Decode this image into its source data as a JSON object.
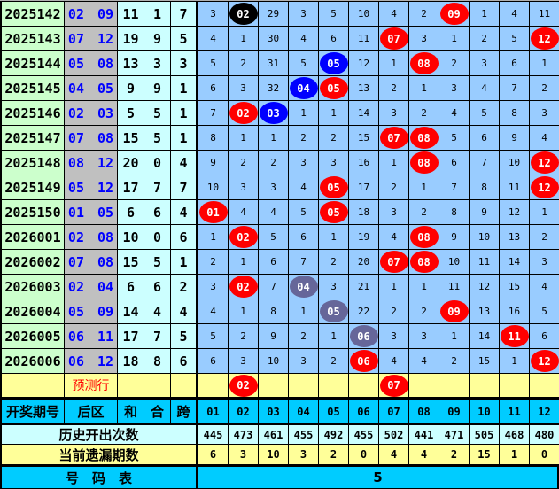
{
  "ball_colors": {
    "red": "#ff0000",
    "blue": "#0000ff",
    "black": "#000000",
    "gray": "#666699"
  },
  "rows": [
    {
      "period": "2025142",
      "back": "02 09",
      "he": "11",
      "hezhi": "1",
      "kua": "7",
      "cells": [
        "3",
        {
          "n": "02",
          "c": "black"
        },
        "29",
        "3",
        "5",
        "10",
        "4",
        "2",
        {
          "n": "09",
          "c": "red"
        },
        "1",
        "4",
        "11"
      ]
    },
    {
      "period": "2025143",
      "back": "07 12",
      "he": "19",
      "hezhi": "9",
      "kua": "5",
      "cells": [
        "4",
        "1",
        "30",
        "4",
        "6",
        "11",
        {
          "n": "07",
          "c": "red"
        },
        "3",
        "1",
        "2",
        "5",
        {
          "n": "12",
          "c": "red"
        }
      ]
    },
    {
      "period": "2025144",
      "back": "05 08",
      "he": "13",
      "hezhi": "3",
      "kua": "3",
      "cells": [
        "5",
        "2",
        "31",
        "5",
        {
          "n": "05",
          "c": "blue"
        },
        "12",
        "1",
        {
          "n": "08",
          "c": "red"
        },
        "2",
        "3",
        "6",
        "1"
      ]
    },
    {
      "period": "2025145",
      "back": "04 05",
      "he": "9",
      "hezhi": "9",
      "kua": "1",
      "cells": [
        "6",
        "3",
        "32",
        {
          "n": "04",
          "c": "blue"
        },
        {
          "n": "05",
          "c": "red"
        },
        "13",
        "2",
        "1",
        "3",
        "4",
        "7",
        "2"
      ]
    },
    {
      "period": "2025146",
      "back": "02 03",
      "he": "5",
      "hezhi": "5",
      "kua": "1",
      "cells": [
        "7",
        {
          "n": "02",
          "c": "red"
        },
        {
          "n": "03",
          "c": "blue"
        },
        "1",
        "1",
        "14",
        "3",
        "2",
        "4",
        "5",
        "8",
        "3"
      ]
    },
    {
      "period": "2025147",
      "back": "07 08",
      "he": "15",
      "hezhi": "5",
      "kua": "1",
      "cells": [
        "8",
        "1",
        "1",
        "2",
        "2",
        "15",
        {
          "n": "07",
          "c": "red"
        },
        {
          "n": "08",
          "c": "red"
        },
        "5",
        "6",
        "9",
        "4"
      ]
    },
    {
      "period": "2025148",
      "back": "08 12",
      "he": "20",
      "hezhi": "0",
      "kua": "4",
      "cells": [
        "9",
        "2",
        "2",
        "3",
        "3",
        "16",
        "1",
        {
          "n": "08",
          "c": "red"
        },
        "6",
        "7",
        "10",
        {
          "n": "12",
          "c": "red"
        }
      ]
    },
    {
      "period": "2025149",
      "back": "05 12",
      "he": "17",
      "hezhi": "7",
      "kua": "7",
      "cells": [
        "10",
        "3",
        "3",
        "4",
        {
          "n": "05",
          "c": "red"
        },
        "17",
        "2",
        "1",
        "7",
        "8",
        "11",
        {
          "n": "12",
          "c": "red"
        }
      ]
    },
    {
      "period": "2025150",
      "back": "01 05",
      "he": "6",
      "hezhi": "6",
      "kua": "4",
      "cells": [
        {
          "n": "01",
          "c": "red"
        },
        "4",
        "4",
        "5",
        {
          "n": "05",
          "c": "red"
        },
        "18",
        "3",
        "2",
        "8",
        "9",
        "12",
        "1"
      ]
    },
    {
      "period": "2026001",
      "back": "02 08",
      "he": "10",
      "hezhi": "0",
      "kua": "6",
      "cells": [
        "1",
        {
          "n": "02",
          "c": "red"
        },
        "5",
        "6",
        "1",
        "19",
        "4",
        {
          "n": "08",
          "c": "red"
        },
        "9",
        "10",
        "13",
        "2"
      ]
    },
    {
      "period": "2026002",
      "back": "07 08",
      "he": "15",
      "hezhi": "5",
      "kua": "1",
      "cells": [
        "2",
        "1",
        "6",
        "7",
        "2",
        "20",
        {
          "n": "07",
          "c": "red"
        },
        {
          "n": "08",
          "c": "red"
        },
        "10",
        "11",
        "14",
        "3"
      ]
    },
    {
      "period": "2026003",
      "back": "02 04",
      "he": "6",
      "hezhi": "6",
      "kua": "2",
      "cells": [
        "3",
        {
          "n": "02",
          "c": "red"
        },
        "7",
        {
          "n": "04",
          "c": "gray"
        },
        "3",
        "21",
        "1",
        "1",
        "11",
        "12",
        "15",
        "4"
      ]
    },
    {
      "period": "2026004",
      "back": "05 09",
      "he": "14",
      "hezhi": "4",
      "kua": "4",
      "cells": [
        "4",
        "1",
        "8",
        "1",
        {
          "n": "05",
          "c": "gray"
        },
        "22",
        "2",
        "2",
        {
          "n": "09",
          "c": "red"
        },
        "13",
        "16",
        "5"
      ]
    },
    {
      "period": "2026005",
      "back": "06 11",
      "he": "17",
      "hezhi": "7",
      "kua": "5",
      "cells": [
        "5",
        "2",
        "9",
        "2",
        "1",
        {
          "n": "06",
          "c": "gray"
        },
        "3",
        "3",
        "1",
        "14",
        {
          "n": "11",
          "c": "red"
        },
        "6"
      ]
    },
    {
      "period": "2026006",
      "back": "06 12",
      "he": "18",
      "hezhi": "8",
      "kua": "6",
      "cells": [
        "6",
        "3",
        "10",
        "3",
        "2",
        {
          "n": "06",
          "c": "red"
        },
        "4",
        "4",
        "2",
        "15",
        "1",
        {
          "n": "12",
          "c": "red"
        }
      ]
    }
  ],
  "prediction": {
    "label": "预测行",
    "cells": [
      "",
      {
        "n": "02",
        "c": "red"
      },
      "",
      "",
      "",
      "",
      {
        "n": "07",
        "c": "red"
      },
      "",
      "",
      "",
      "",
      ""
    ]
  },
  "header": {
    "period": "开奖期号",
    "back": "后区",
    "he": "和",
    "hezhi": "合",
    "kua": "跨",
    "numbers": [
      "01",
      "02",
      "03",
      "04",
      "05",
      "06",
      "07",
      "08",
      "09",
      "10",
      "11",
      "12"
    ]
  },
  "history": {
    "label": "历史开出次数",
    "values": [
      "445",
      "473",
      "461",
      "455",
      "492",
      "455",
      "502",
      "441",
      "471",
      "505",
      "468",
      "480"
    ]
  },
  "omission": {
    "label": "当前遗漏期数",
    "values": [
      "6",
      "3",
      "10",
      "3",
      "2",
      "0",
      "4",
      "4",
      "2",
      "15",
      "1",
      "0"
    ]
  },
  "footer": {
    "label": "号　码　表",
    "value": "5"
  }
}
